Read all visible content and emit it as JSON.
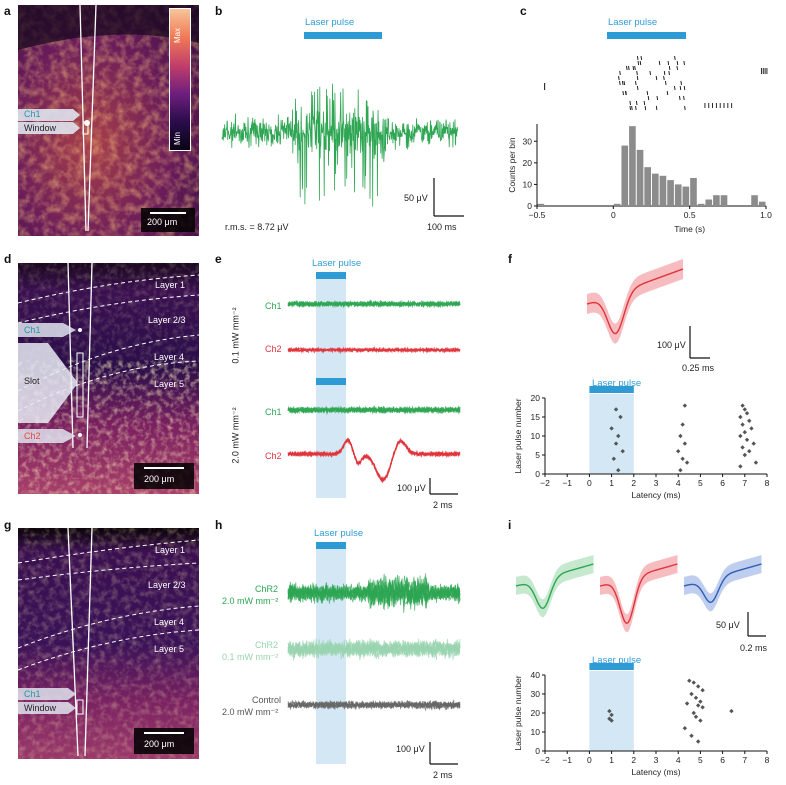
{
  "panels": {
    "a": "a",
    "b": "b",
    "c": "c",
    "d": "d",
    "e": "e",
    "f": "f",
    "g": "g",
    "h": "h",
    "i": "i"
  },
  "laser": {
    "label": "Laser pulse",
    "color": "#2f9bd4"
  },
  "colorbar": {
    "max": "Max",
    "min": "Min"
  },
  "micro_a": {
    "ch1": "Ch1",
    "window": "Window",
    "scale": "200 μm"
  },
  "micro_d": {
    "layers": [
      "Layer 1",
      "Layer 2/3",
      "Layer 4",
      "Layer 5"
    ],
    "ch1": "Ch1",
    "slot": "Slot",
    "ch2": "Ch2",
    "scale": "200 μm"
  },
  "micro_g": {
    "layers": [
      "Layer 1",
      "Layer 2/3",
      "Layer 4",
      "Layer 5"
    ],
    "ch1": "Ch1",
    "window": "Window",
    "scale": "200 μm"
  },
  "panel_b": {
    "rms": "r.m.s. = 8.72 μV",
    "scale_v": "50 μV",
    "scale_t": "100 ms"
  },
  "panel_c": {
    "chart_data": {
      "type": "bar",
      "xlabel": "Time (s)",
      "ylabel": "Counts per bin",
      "xlim": [
        -0.5,
        1.0
      ],
      "ylim": [
        0,
        38
      ],
      "xticks": [
        "−0.5",
        "0",
        "0.5",
        "1.0"
      ],
      "yticks": [
        "0",
        "10",
        "20",
        "30"
      ],
      "bins": [
        -0.5,
        -0.45,
        -0.4,
        -0.35,
        -0.3,
        -0.25,
        -0.2,
        -0.15,
        -0.1,
        -0.05,
        0,
        0.05,
        0.1,
        0.15,
        0.2,
        0.25,
        0.3,
        0.35,
        0.4,
        0.45,
        0.5,
        0.55,
        0.6,
        0.65,
        0.7,
        0.75,
        0.8,
        0.85,
        0.9,
        0.95
      ],
      "values": [
        1,
        0,
        0,
        0,
        0,
        0,
        0,
        0,
        0,
        0,
        1,
        28,
        37,
        26,
        18,
        15,
        14,
        12,
        10,
        9,
        13,
        1,
        3,
        5,
        5,
        0,
        0,
        0,
        5,
        2
      ],
      "bin_width": 0.05
    }
  },
  "panel_e": {
    "ch1": "Ch1",
    "ch2": "Ch2",
    "cond1": "0.1 mW mm⁻²",
    "cond2": "2.0 mW mm⁻²",
    "scale_v": "100 μV",
    "scale_t": "2 ms"
  },
  "panel_f": {
    "scale_v": "100 μV",
    "scale_t": "0.25 ms",
    "chart_data": {
      "type": "scatter",
      "xlabel": "Latency (ms)",
      "ylabel": "Laser pulse number",
      "xlim": [
        -2,
        8
      ],
      "ylim": [
        0,
        20
      ],
      "xticks": [
        "−2",
        "−1",
        "0",
        "1",
        "2",
        "3",
        "4",
        "5",
        "6",
        "7",
        "8"
      ],
      "yticks": [
        "0",
        "5",
        "10",
        "15",
        "20"
      ],
      "x": [
        1.2,
        1.4,
        1.0,
        1.3,
        1.2,
        1.5,
        1.1,
        1.3,
        4.3,
        4.2,
        4.1,
        4.3,
        4.0,
        4.2,
        4.4,
        4.1,
        6.9,
        7.0,
        7.1,
        6.8,
        7.2,
        6.9,
        7.3,
        7.0,
        6.8,
        7.1,
        7.4,
        6.9,
        7.2,
        7.0,
        7.5,
        6.8
      ],
      "y": [
        17,
        15,
        12,
        10,
        8,
        6,
        4,
        1,
        18,
        13,
        10,
        8,
        6,
        4,
        3,
        1,
        18,
        17,
        16,
        15,
        14,
        13,
        12,
        11,
        10,
        9,
        8,
        7,
        6,
        5,
        3,
        2
      ]
    }
  },
  "panel_h": {
    "chr2": "ChR2",
    "cond_high": "2.0 mW mm⁻²",
    "cond_low": "0.1 mW mm⁻²",
    "control": "Control",
    "scale_v": "100 μV",
    "scale_t": "2 ms"
  },
  "panel_i": {
    "scale_v": "50 μV",
    "scale_t": "0.2 ms",
    "chart_data": {
      "type": "scatter",
      "xlabel": "Latency (ms)",
      "ylabel": "Laser pulse number",
      "xlim": [
        -2,
        8
      ],
      "ylim": [
        0,
        40
      ],
      "xticks": [
        "−2",
        "−1",
        "0",
        "1",
        "2",
        "3",
        "4",
        "5",
        "6",
        "7",
        "8"
      ],
      "yticks": [
        "0",
        "10",
        "20",
        "30",
        "40"
      ],
      "x": [
        0.9,
        1.0,
        0.9,
        1.0,
        4.5,
        4.7,
        4.9,
        5.1,
        4.6,
        4.8,
        5.0,
        4.4,
        4.9,
        5.1,
        4.7,
        4.8,
        5.0,
        4.3,
        4.6,
        4.9,
        6.4
      ],
      "y": [
        21,
        19,
        17,
        16,
        37,
        36,
        34,
        32,
        30,
        28,
        26,
        25,
        24,
        23,
        20,
        18,
        16,
        12,
        8,
        5,
        21
      ]
    }
  }
}
